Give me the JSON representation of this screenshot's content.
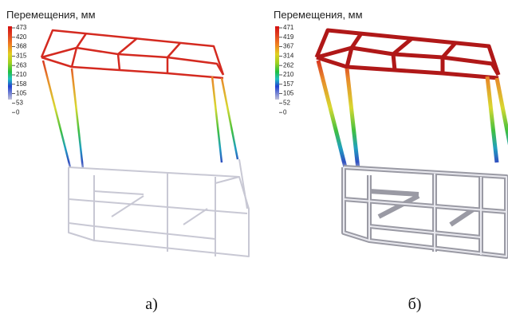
{
  "panels": [
    {
      "title": "Перемещения, мм",
      "scale": [
        473,
        420,
        368,
        315,
        263,
        210,
        158,
        105,
        53,
        0
      ],
      "caption": "а)"
    },
    {
      "title": "Перемещения, мм",
      "scale": [
        471,
        419,
        367,
        314,
        262,
        210,
        157,
        105,
        52,
        0
      ],
      "caption": "б)"
    }
  ]
}
